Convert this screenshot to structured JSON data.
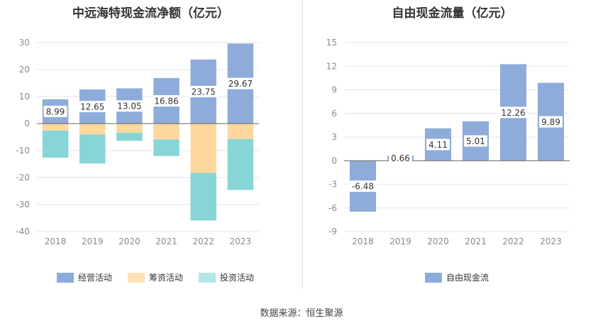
{
  "source_label": "数据来源：恒生聚源",
  "chart_data": [
    {
      "type": "bar",
      "stacked": true,
      "title": "中远海特现金流净额（亿元）",
      "categories": [
        "2018",
        "2019",
        "2020",
        "2021",
        "2022",
        "2023"
      ],
      "ylim": [
        -40,
        30
      ],
      "yticks": [
        30,
        20,
        10,
        0,
        -10,
        -20,
        -30,
        -40
      ],
      "grid": true,
      "legend_position": "bottom",
      "series": [
        {
          "name": "经营活动",
          "color": "#8eacd9",
          "values": [
            8.99,
            12.65,
            13.05,
            16.86,
            23.75,
            29.67
          ],
          "labels": [
            "8.99",
            "12.65",
            "13.05",
            "16.86",
            "23.75",
            "29.67"
          ]
        },
        {
          "name": "筹资活动",
          "color": "#ffd89d",
          "values": [
            -2.6,
            -4.0,
            -3.4,
            -5.9,
            -18.3,
            -5.7
          ]
        },
        {
          "name": "投资活动",
          "color": "#87d5d6",
          "values": [
            -10.0,
            -10.8,
            -3.0,
            -6.1,
            -17.6,
            -18.9
          ]
        }
      ]
    },
    {
      "type": "bar",
      "title": "自由现金流量（亿元）",
      "categories": [
        "2018",
        "2019",
        "2020",
        "2021",
        "2022",
        "2023"
      ],
      "ylim": [
        -9,
        15
      ],
      "yticks": [
        15,
        12,
        9,
        6,
        3,
        0,
        -3,
        -6,
        -9
      ],
      "grid": true,
      "legend_position": "bottom",
      "series": [
        {
          "name": "自由现金流",
          "color": "#8eacd9",
          "values": [
            -6.48,
            0.66,
            4.11,
            5.01,
            12.26,
            9.89
          ],
          "labels": [
            "-6.48",
            "0.66",
            "4.11",
            "5.01",
            "12.26",
            "9.89"
          ]
        }
      ]
    }
  ]
}
